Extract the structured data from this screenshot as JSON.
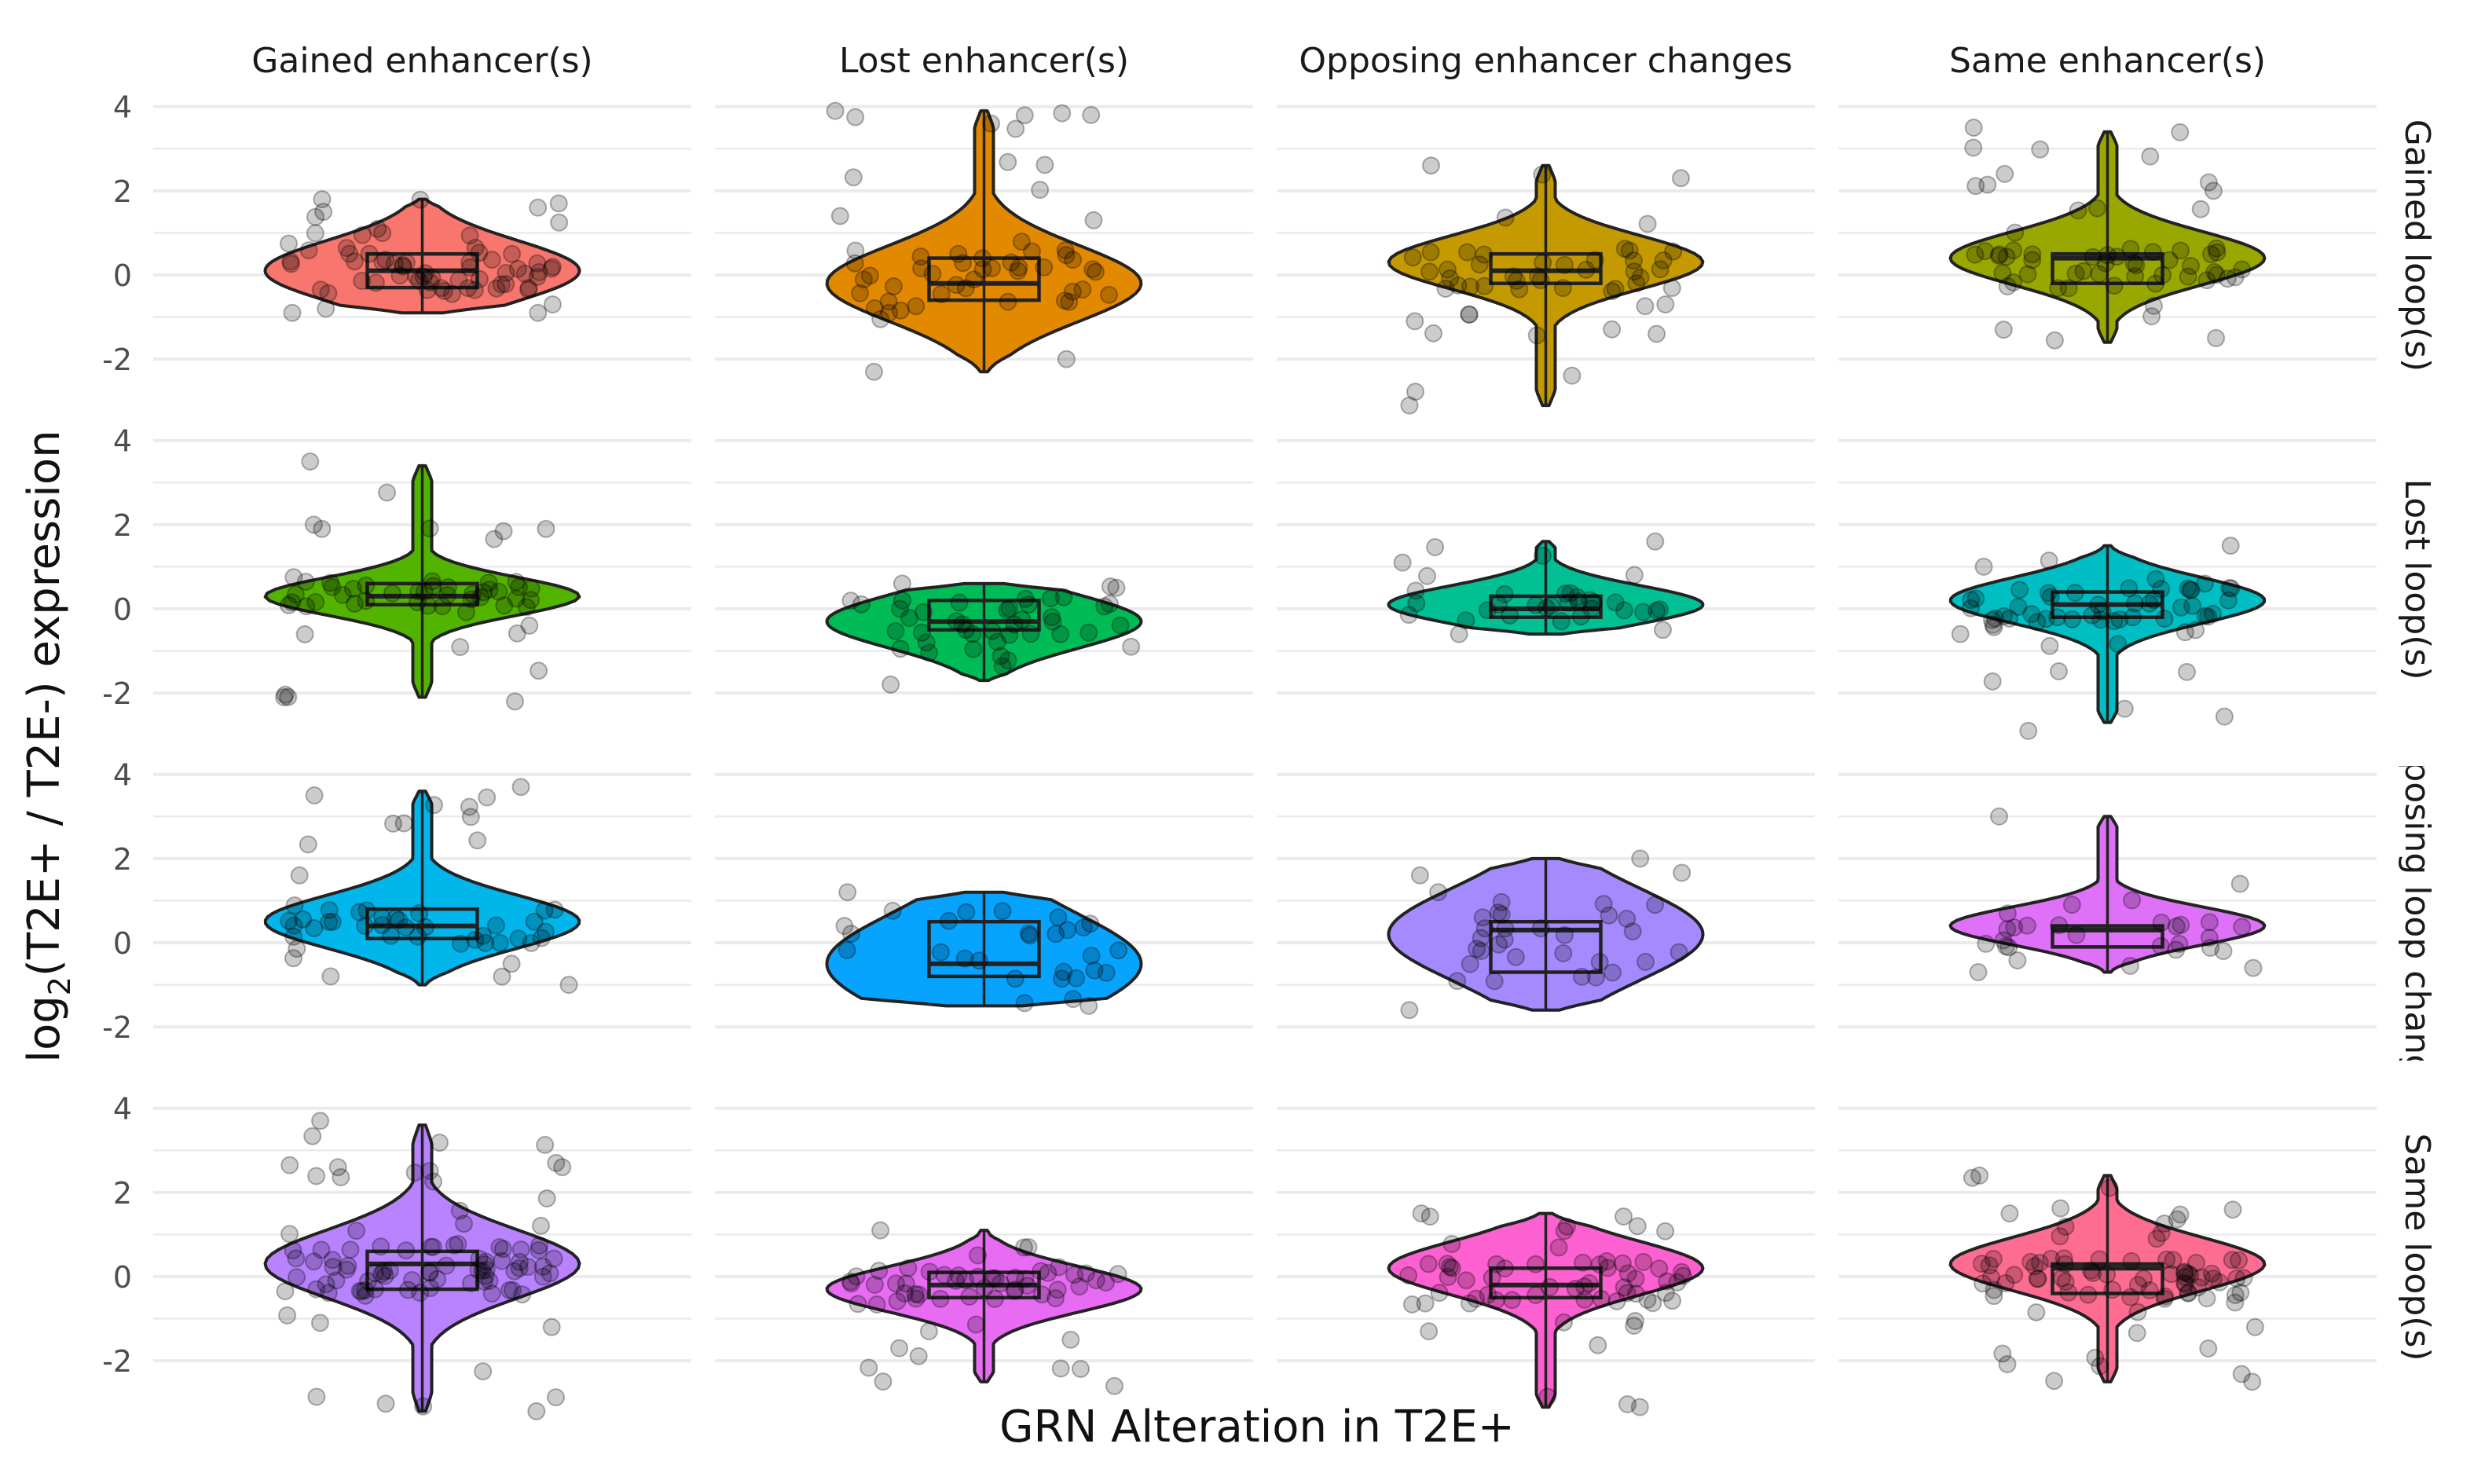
{
  "chart_data": {
    "type": "violin",
    "xlabel": "GRN Alteration in T2E+",
    "ylabel_main": "log",
    "ylabel_sub": "2",
    "ylabel_rest": "(T2E+ / T2E-) expression",
    "ylim": [
      -2.8,
      4.2
    ],
    "yticks": [
      4,
      2,
      0,
      -2
    ],
    "ytick_labels": [
      "4",
      "2",
      "0",
      "-2"
    ],
    "grid": true,
    "col_labels": [
      "Gained enhancer(s)",
      "Lost enhancer(s)",
      "Opposing enhancer changes",
      "Same enhancer(s)"
    ],
    "row_labels": [
      "Gained loop(s)",
      "Lost loop(s)",
      "Opposing loop changes",
      "Same loop(s)"
    ],
    "panels": [
      {
        "row": 0,
        "col": 0,
        "color": "#F8766D",
        "min": -0.9,
        "max": 1.8,
        "q1": -0.3,
        "median": 0.1,
        "q3": 0.5,
        "mode": 0.1,
        "n": 60,
        "outliers": [
          [
            -0.8,
            -0.7
          ],
          [
            1.8,
            1.7
          ],
          [
            1.5,
            1.6
          ],
          [
            -0.9,
            -0.9
          ]
        ]
      },
      {
        "row": 0,
        "col": 1,
        "color": "#E38900",
        "min": -2.3,
        "max": 3.9,
        "q1": -0.6,
        "median": -0.2,
        "q3": 0.4,
        "mode": -0.2,
        "n": 50,
        "outliers": [
          [
            3.9,
            3.8
          ],
          [
            -2.3,
            -2.0
          ],
          [
            1.4,
            1.3
          ]
        ]
      },
      {
        "row": 0,
        "col": 2,
        "color": "#C49A00",
        "min": -3.1,
        "max": 2.6,
        "q1": -0.2,
        "median": 0.1,
        "q3": 0.5,
        "mode": 0.3,
        "n": 45,
        "outliers": [
          [
            2.6,
            2.3
          ],
          [
            -3.1,
            -1.4
          ],
          [
            -1.1,
            -0.7
          ]
        ]
      },
      {
        "row": 0,
        "col": 3,
        "color": "#99A800",
        "min": -1.6,
        "max": 3.4,
        "q1": -0.2,
        "median": 0.4,
        "q3": 0.5,
        "mode": 0.4,
        "n": 55,
        "outliers": [
          [
            3.5,
            2.2
          ],
          [
            2.4,
            2.0
          ],
          [
            -1.3,
            -1.5
          ]
        ]
      },
      {
        "row": 1,
        "col": 0,
        "color": "#53B400",
        "min": -2.1,
        "max": 3.4,
        "q1": 0.1,
        "median": 0.3,
        "q3": 0.6,
        "mode": 0.3,
        "n": 50,
        "outliers": [
          [
            3.5,
            -2.2
          ],
          [
            2.0,
            1.9
          ],
          [
            -2.1,
            -0.4
          ]
        ]
      },
      {
        "row": 1,
        "col": 1,
        "color": "#00BC56",
        "min": -1.7,
        "max": 0.6,
        "q1": -0.5,
        "median": -0.3,
        "q3": 0.2,
        "mode": -0.3,
        "n": 40,
        "outliers": [
          [
            0.6,
            0.5
          ],
          [
            -1.8,
            -0.9
          ]
        ]
      },
      {
        "row": 1,
        "col": 2,
        "color": "#00C094",
        "min": -0.6,
        "max": 1.6,
        "q1": -0.2,
        "median": 0.0,
        "q3": 0.3,
        "mode": 0.1,
        "n": 30,
        "outliers": [
          [
            1.1,
            1.6
          ],
          [
            -0.6,
            -0.5
          ]
        ]
      },
      {
        "row": 1,
        "col": 3,
        "color": "#00BFC4",
        "min": -2.7,
        "max": 1.5,
        "q1": -0.2,
        "median": 0.1,
        "q3": 0.4,
        "mode": 0.2,
        "n": 55,
        "outliers": [
          [
            -2.9,
            1.5
          ],
          [
            -0.6,
            0.6
          ]
        ]
      },
      {
        "row": 2,
        "col": 0,
        "color": "#00B6EB",
        "min": -1.0,
        "max": 3.6,
        "q1": 0.1,
        "median": 0.4,
        "q3": 0.8,
        "mode": 0.5,
        "n": 45,
        "outliers": [
          [
            3.5,
            3.7
          ],
          [
            1.6,
            -1.0
          ],
          [
            -0.8,
            -0.5
          ]
        ]
      },
      {
        "row": 2,
        "col": 1,
        "color": "#06A4FF",
        "min": -1.5,
        "max": 1.2,
        "q1": -0.8,
        "median": -0.5,
        "q3": 0.5,
        "mode": -0.5,
        "n": 25,
        "outliers": [
          [
            1.2,
            -1.5
          ],
          [
            0.4,
            0.3
          ]
        ]
      },
      {
        "row": 2,
        "col": 2,
        "color": "#A58AFF",
        "min": -1.6,
        "max": 2.0,
        "q1": -0.7,
        "median": 0.3,
        "q3": 0.5,
        "mode": 0.2,
        "n": 30,
        "outliers": [
          [
            1.6,
            2.0
          ],
          [
            -1.6,
            0.9
          ]
        ]
      },
      {
        "row": 2,
        "col": 3,
        "color": "#DF70F8",
        "min": -0.7,
        "max": 3.0,
        "q1": -0.1,
        "median": 0.3,
        "q3": 0.4,
        "mode": 0.4,
        "n": 25,
        "outliers": [
          [
            3.0,
            1.4
          ],
          [
            -0.7,
            -0.6
          ]
        ]
      },
      {
        "row": 3,
        "col": 0,
        "color": "#B983FF",
        "min": -3.2,
        "max": 3.6,
        "q1": -0.3,
        "median": 0.3,
        "q3": 0.6,
        "mode": 0.3,
        "n": 90,
        "outliers": [
          [
            3.7,
            2.6
          ],
          [
            2.6,
            2.7
          ],
          [
            -1.1,
            -3.2
          ]
        ]
      },
      {
        "row": 3,
        "col": 1,
        "color": "#E76BF3",
        "min": -2.5,
        "max": 1.1,
        "q1": -0.5,
        "median": -0.2,
        "q3": 0.1,
        "mode": -0.3,
        "n": 55,
        "outliers": [
          [
            1.1,
            -2.6
          ],
          [
            -1.7,
            -1.5
          ]
        ]
      },
      {
        "row": 3,
        "col": 2,
        "color": "#FD61D1",
        "min": -3.1,
        "max": 1.5,
        "q1": -0.5,
        "median": -0.2,
        "q3": 0.2,
        "mode": 0.2,
        "n": 60,
        "outliers": [
          [
            1.5,
            -3.1
          ],
          [
            -1.3,
            1.2
          ]
        ]
      },
      {
        "row": 3,
        "col": 3,
        "color": "#FF6C91",
        "min": -2.5,
        "max": 2.4,
        "q1": -0.4,
        "median": 0.2,
        "q3": 0.3,
        "mode": 0.3,
        "n": 80,
        "outliers": [
          [
            2.4,
            -2.5
          ],
          [
            1.5,
            -1.2
          ]
        ]
      }
    ]
  }
}
